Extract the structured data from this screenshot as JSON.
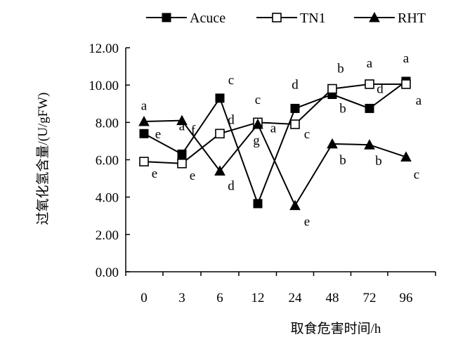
{
  "chart_data": {
    "type": "line",
    "categories": [
      "0",
      "3",
      "6",
      "12",
      "24",
      "48",
      "72",
      "96"
    ],
    "xlabel": "取食危害时间/h",
    "ylabel": "过氧化氢含量/(U/gFW)",
    "ylim": [
      0,
      12
    ],
    "yticks": [
      "0.00",
      "2.00",
      "4.00",
      "6.00",
      "8.00",
      "10.00",
      "12.00"
    ],
    "grid": false,
    "legend_position": "top",
    "series": [
      {
        "name": "Acuce",
        "marker": "square-filled",
        "values": [
          7.4,
          6.3,
          9.3,
          3.65,
          8.75,
          9.5,
          8.75,
          10.2
        ],
        "labels": [
          "a",
          "a",
          "c",
          "c",
          "d",
          "b",
          "d",
          "a"
        ]
      },
      {
        "name": "TN1",
        "marker": "square-open",
        "values": [
          5.9,
          5.8,
          7.4,
          8.0,
          7.9,
          9.8,
          10.05,
          10.05
        ],
        "labels": [
          "e",
          "e",
          "d",
          "a",
          "c",
          "b",
          "a",
          "a"
        ]
      },
      {
        "name": "RHT",
        "marker": "triangle-filled",
        "values": [
          8.05,
          8.1,
          5.4,
          7.9,
          3.55,
          6.85,
          6.8,
          6.15
        ],
        "labels": [
          "e",
          "f",
          "d",
          "g",
          "e",
          "b",
          "b",
          "c"
        ]
      }
    ]
  }
}
